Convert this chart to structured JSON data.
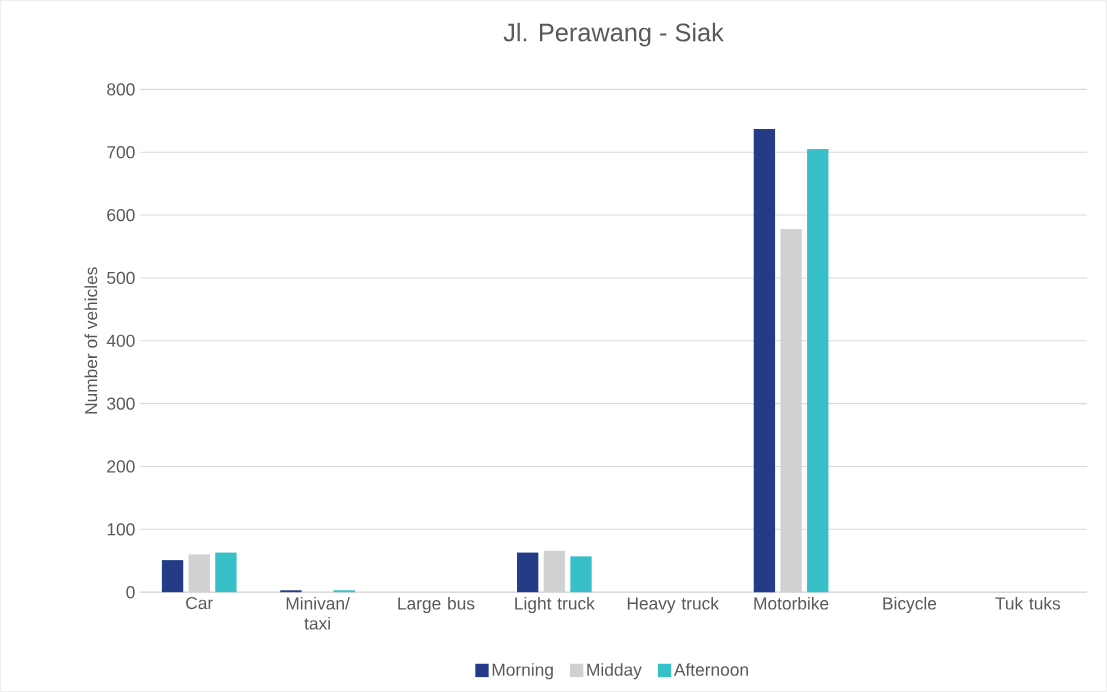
{
  "chart_data": {
    "type": "bar",
    "title": "Jl. Perawang - Siak",
    "ylabel": "Number of vehicles",
    "categories": [
      "Car",
      "Minivan/ taxi",
      "Large bus",
      "Light truck",
      "Heavy truck",
      "Motorbike",
      "Bicycle",
      "Tuk tuks"
    ],
    "series": [
      {
        "name": "Morning",
        "color": "#243c87",
        "values": [
          51,
          3,
          0,
          63,
          0,
          737,
          0,
          0
        ]
      },
      {
        "name": "Midday",
        "color": "#d0d1d3",
        "values": [
          60,
          0,
          0,
          66,
          0,
          578,
          0,
          0
        ]
      },
      {
        "name": "Afternoon",
        "color": "#37c0c8",
        "values": [
          63,
          3,
          0,
          57,
          0,
          705,
          0,
          0
        ]
      }
    ],
    "ylim": [
      0,
      800
    ],
    "yticks": [
      0,
      100,
      200,
      300,
      400,
      500,
      600,
      700,
      800
    ],
    "grid": "y",
    "legend": "bottom"
  }
}
